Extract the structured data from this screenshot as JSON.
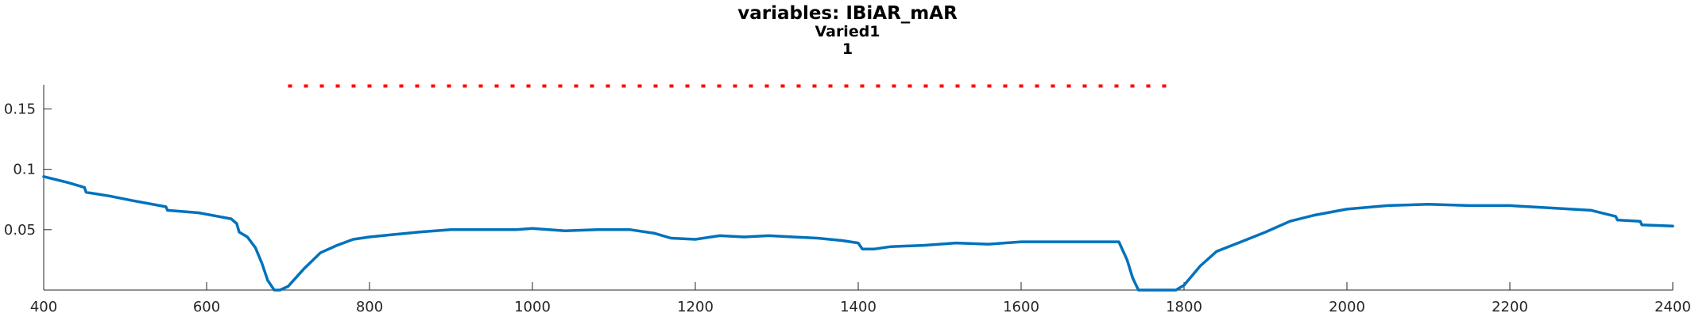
{
  "chart_data": {
    "type": "line",
    "title": "variables: IBiAR_mAR",
    "subtitle_lines": [
      "Varied1",
      "1"
    ],
    "xlim": [
      400,
      2400
    ],
    "ylim": [
      0,
      0.17
    ],
    "x_ticks": [
      400,
      600,
      800,
      1000,
      1200,
      1400,
      1600,
      1800,
      2000,
      2200,
      2400
    ],
    "y_ticks": [
      0.05,
      0.1,
      0.15
    ],
    "x_tick_labels": [
      "400",
      "600",
      "800",
      "1000",
      "1200",
      "1400",
      "1600",
      "1800",
      "2000",
      "2200",
      "2400"
    ],
    "y_tick_labels": [
      "0.05",
      "0.1",
      "0.15"
    ],
    "grid": false,
    "series": [
      {
        "color": "#0072BD",
        "x": [
          400,
          430,
          450,
          452,
          480,
          510,
          550,
          552,
          590,
          630,
          637,
          640,
          650,
          660,
          668,
          675,
          683,
          690,
          700,
          720,
          740,
          760,
          780,
          800,
          830,
          860,
          900,
          940,
          980,
          1000,
          1040,
          1080,
          1120,
          1150,
          1170,
          1200,
          1230,
          1260,
          1290,
          1320,
          1350,
          1380,
          1400,
          1405,
          1420,
          1440,
          1480,
          1520,
          1560,
          1600,
          1640,
          1680,
          1700,
          1720,
          1730,
          1737,
          1744,
          1750,
          1790,
          1800,
          1820,
          1840,
          1870,
          1900,
          1930,
          1960,
          2000,
          2050,
          2100,
          2150,
          2200,
          2250,
          2300,
          2330,
          2332,
          2360,
          2362,
          2400
        ],
        "y": [
          0.094,
          0.089,
          0.085,
          0.081,
          0.078,
          0.074,
          0.069,
          0.066,
          0.064,
          0.059,
          0.055,
          0.048,
          0.044,
          0.035,
          0.022,
          0.008,
          0.0,
          0.0,
          0.003,
          0.018,
          0.031,
          0.037,
          0.042,
          0.044,
          0.046,
          0.048,
          0.05,
          0.05,
          0.05,
          0.051,
          0.049,
          0.05,
          0.05,
          0.047,
          0.043,
          0.042,
          0.045,
          0.044,
          0.045,
          0.044,
          0.043,
          0.041,
          0.039,
          0.034,
          0.034,
          0.036,
          0.037,
          0.039,
          0.038,
          0.04,
          0.04,
          0.04,
          0.04,
          0.04,
          0.025,
          0.01,
          0.0,
          0.0,
          0.0,
          0.004,
          0.02,
          0.032,
          0.04,
          0.048,
          0.057,
          0.062,
          0.067,
          0.07,
          0.071,
          0.07,
          0.07,
          0.068,
          0.066,
          0.061,
          0.058,
          0.057,
          0.054,
          0.053
        ]
      },
      {
        "color": "#FF0000",
        "style": "dotted",
        "x": [
          700,
          1780
        ],
        "y": [
          0.169,
          0.169
        ]
      }
    ]
  }
}
